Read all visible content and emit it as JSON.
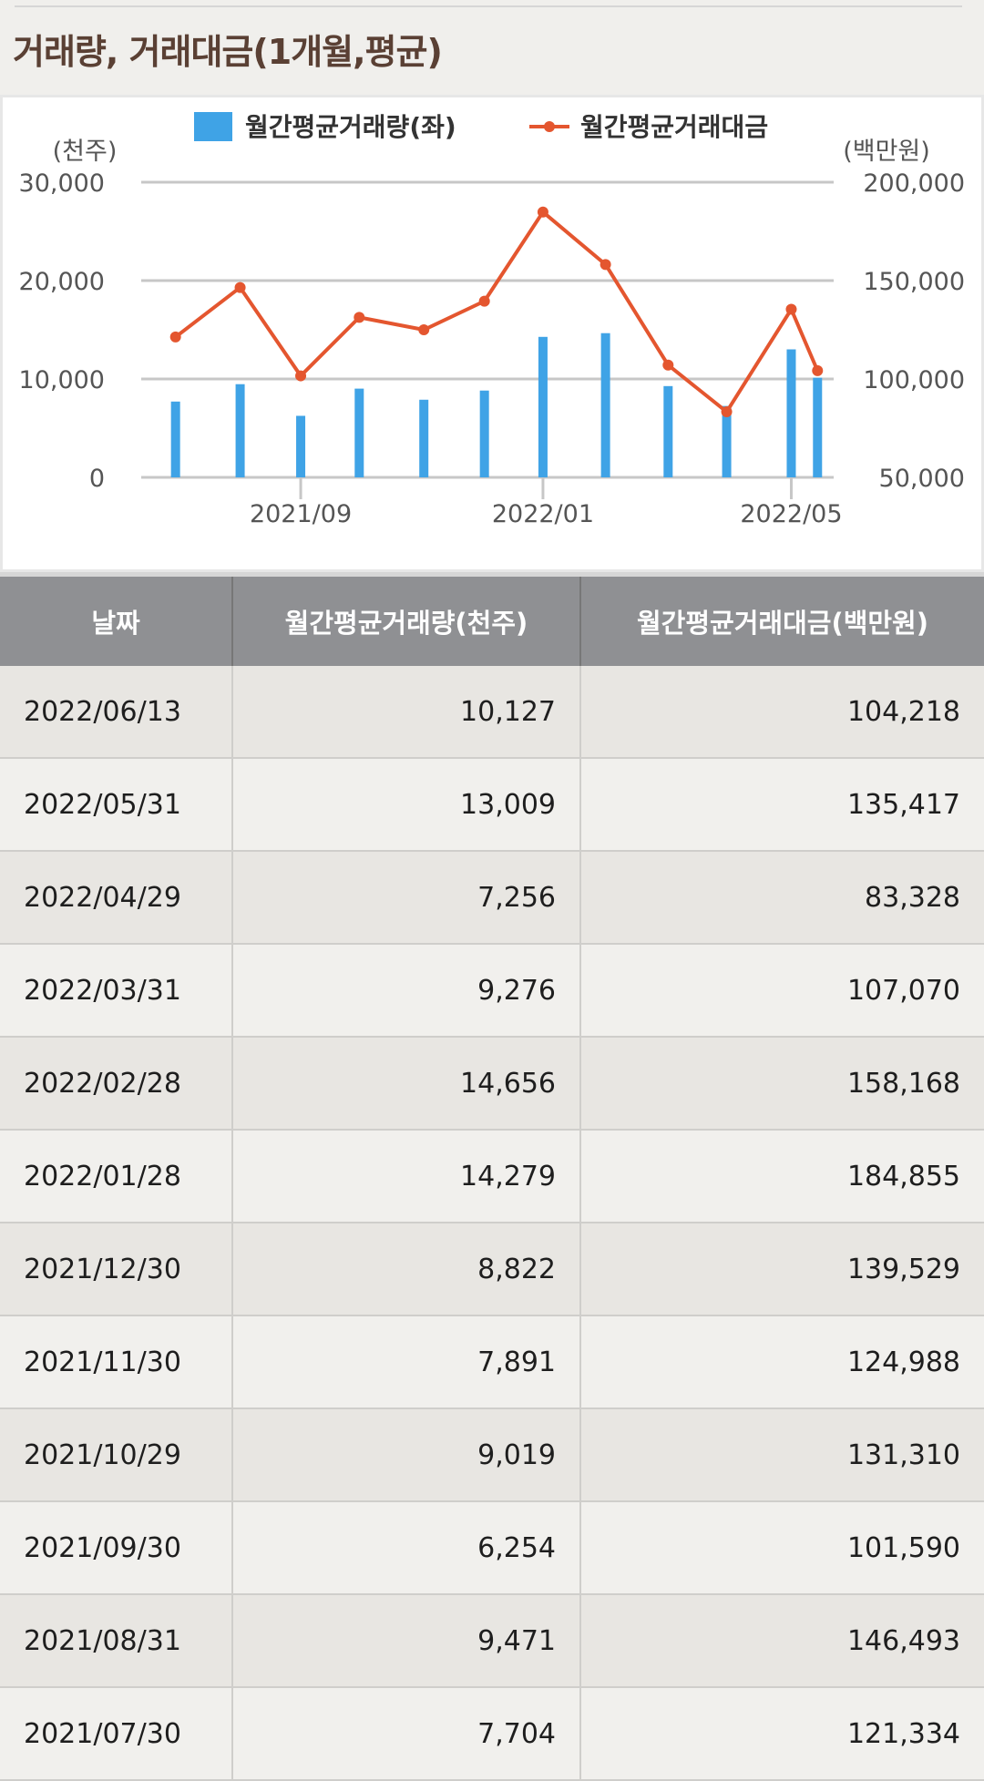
{
  "section_title": "거래량, 거래대금(1개월,평균)",
  "chart_data": {
    "type": "bar+line",
    "legend": {
      "volume": "월간평균거래량(좌)",
      "amount": "월간평균거래대금"
    },
    "left_unit": "(천주)",
    "right_unit": "(백만원)",
    "left_ticks": [
      "30,000",
      "20,000",
      "10,000",
      "0"
    ],
    "right_ticks": [
      "200,000",
      "150,000",
      "100,000",
      "50,000"
    ],
    "left_range": [
      0,
      30000
    ],
    "right_range": [
      50000,
      200000
    ],
    "x_ticks": [
      "2021/09",
      "2022/01",
      "2022/05"
    ],
    "x_tick_dates": [
      "2021/09/30",
      "2022/01/28",
      "2022/05/31"
    ],
    "dates": [
      "2021/07/30",
      "2021/08/31",
      "2021/09/30",
      "2021/10/29",
      "2021/11/30",
      "2021/12/30",
      "2022/01/28",
      "2022/02/28",
      "2022/03/31",
      "2022/04/29",
      "2022/05/31",
      "2022/06/13"
    ],
    "volume": [
      7704,
      9471,
      6254,
      9019,
      7891,
      8822,
      14279,
      14656,
      9276,
      7256,
      13009,
      10127
    ],
    "amount": [
      121334,
      146493,
      101590,
      131310,
      124988,
      139529,
      184855,
      158168,
      107070,
      83328,
      135417,
      104218
    ],
    "colors": {
      "bar": "#3fa3e6",
      "line": "#e4562f"
    },
    "grid": true,
    "legend_position": "top"
  },
  "table": {
    "headers": [
      "날짜",
      "월간평균거래량(천주)",
      "월간평균거래대금(백만원)"
    ],
    "rows": [
      [
        "2022/06/13",
        "10,127",
        "104,218"
      ],
      [
        "2022/05/31",
        "13,009",
        "135,417"
      ],
      [
        "2022/04/29",
        "7,256",
        "83,328"
      ],
      [
        "2022/03/31",
        "9,276",
        "107,070"
      ],
      [
        "2022/02/28",
        "14,656",
        "158,168"
      ],
      [
        "2022/01/28",
        "14,279",
        "184,855"
      ],
      [
        "2021/12/30",
        "8,822",
        "139,529"
      ],
      [
        "2021/11/30",
        "7,891",
        "124,988"
      ],
      [
        "2021/10/29",
        "9,019",
        "131,310"
      ],
      [
        "2021/09/30",
        "6,254",
        "101,590"
      ],
      [
        "2021/08/31",
        "9,471",
        "146,493"
      ],
      [
        "2021/07/30",
        "7,704",
        "121,334"
      ]
    ]
  }
}
